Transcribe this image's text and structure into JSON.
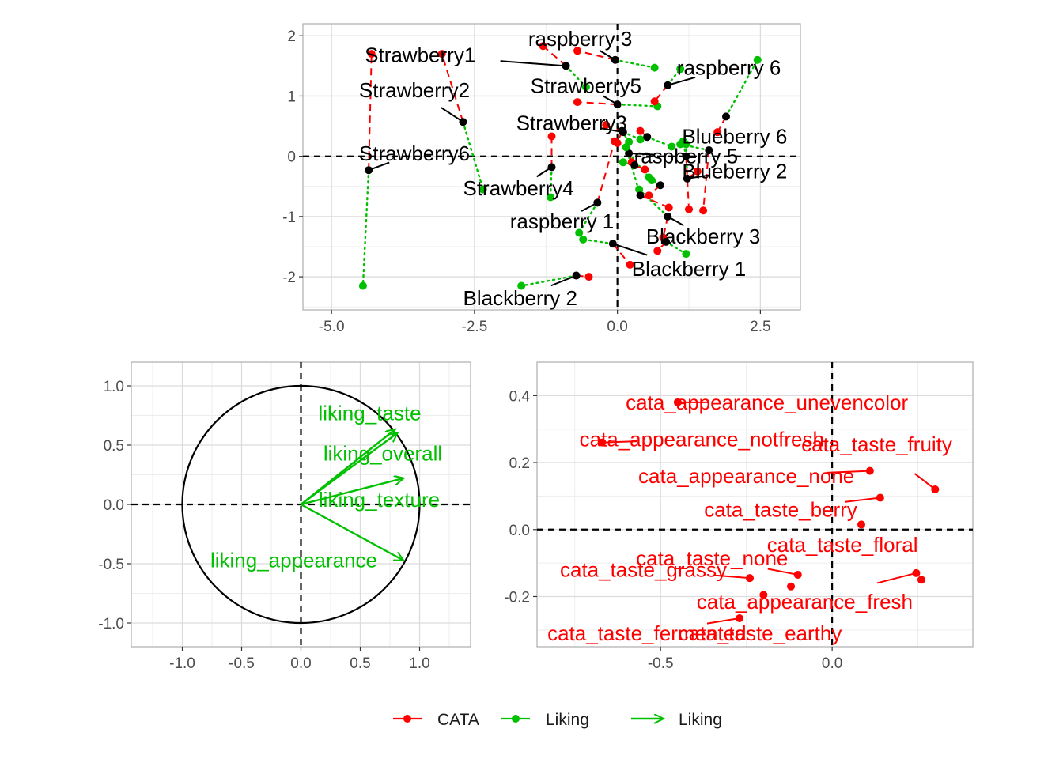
{
  "chart_data": [
    {
      "type": "scatter",
      "title": "",
      "xlabel": "",
      "ylabel": "",
      "xlim": [
        -5.5,
        3.2
      ],
      "ylim": [
        -2.55,
        2.2
      ],
      "xticks": [
        -5.0,
        -2.5,
        0.0,
        2.5
      ],
      "xtick_labels": [
        "-5.0",
        "-2.5",
        "0.0",
        "2.5"
      ],
      "yticks": [
        -2,
        -1,
        0,
        1,
        2
      ],
      "ytick_labels": [
        "-2",
        "-1",
        "0",
        "1",
        "2"
      ],
      "grid": true,
      "reference_lines": {
        "x": 0,
        "y": 0,
        "style": "dashed"
      },
      "colors": {
        "consensus": "#000000",
        "CATA": "#ff0000",
        "Liking": "#00c000"
      },
      "products": [
        {
          "name": "Strawberry1",
          "x": -0.9,
          "y": 1.5,
          "cata": [
            -1.3,
            1.83
          ],
          "liking": [
            -0.55,
            1.15
          ],
          "label_at": [
            -3.45,
            1.68
          ]
        },
        {
          "name": "Strawberry2",
          "x": -2.7,
          "y": 0.57,
          "cata": [
            -3.07,
            1.7
          ],
          "liking": [
            -2.35,
            -0.55
          ],
          "label_at": [
            -3.55,
            1.1
          ]
        },
        {
          "name": "Strawberry3",
          "x": 0.1,
          "y": 0.4,
          "cata": [
            -0.2,
            0.52
          ],
          "liking": [
            0.4,
            0.28
          ],
          "label_at": [
            -0.8,
            0.55
          ]
        },
        {
          "name": "Strawberry4",
          "x": -1.15,
          "y": -0.18,
          "cata": [
            -1.15,
            0.33
          ],
          "liking": [
            -1.17,
            -0.68
          ],
          "label_at": [
            -1.73,
            -0.53
          ]
        },
        {
          "name": "Strawberry5",
          "x": 0.0,
          "y": 0.86,
          "cata": [
            -0.7,
            0.9
          ],
          "liking": [
            0.7,
            0.83
          ],
          "label_at": [
            -0.55,
            1.17
          ]
        },
        {
          "name": "Strawberry6",
          "x": -4.35,
          "y": -0.23,
          "cata": [
            -4.3,
            1.7
          ],
          "liking": [
            -4.45,
            -2.15
          ],
          "label_at": [
            -3.55,
            0.05
          ]
        },
        {
          "name": "raspberry 1",
          "x": -0.35,
          "y": -0.77,
          "cata": [
            -0.05,
            0.25
          ],
          "liking": [
            -0.67,
            -1.27
          ],
          "label_at": [
            -0.97,
            -1.08
          ]
        },
        {
          "name": "raspberry 3",
          "x": -0.04,
          "y": 1.6,
          "cata": [
            -0.7,
            1.75
          ],
          "liking": [
            0.65,
            1.47
          ],
          "label_at": [
            -0.65,
            1.95
          ]
        },
        {
          "name": "raspberry 5",
          "x": 0.2,
          "y": 0.05,
          "cata": [
            0.25,
            -0.1
          ],
          "liking": [
            0.55,
            -0.35
          ],
          "label_at": [
            1.2,
            0.0
          ]
        },
        {
          "name": "raspberry 6",
          "x": 0.88,
          "y": 1.18,
          "cata": [
            0.65,
            0.91
          ],
          "liking": [
            1.1,
            1.45
          ],
          "label_at": [
            1.95,
            1.47
          ]
        },
        {
          "name": "Blueberry 2",
          "x": 1.22,
          "y": -0.37,
          "cata": [
            1.4,
            -0.25
          ],
          "liking": [
            1.2,
            0.2
          ],
          "label_at": [
            2.05,
            -0.25
          ]
        },
        {
          "name": "Blueberry 6",
          "x": 1.9,
          "y": 0.66,
          "cata": [
            1.75,
            0.4
          ],
          "liking": [
            2.45,
            1.6
          ],
          "label_at": [
            2.05,
            0.33
          ]
        },
        {
          "name": "Blackberry 1",
          "x": -0.08,
          "y": -1.45,
          "cata": [
            0.22,
            -1.8
          ],
          "liking": [
            -0.6,
            -1.38
          ],
          "label_at": [
            1.25,
            -1.87
          ]
        },
        {
          "name": "Blackberry 2",
          "x": -0.72,
          "y": -1.98,
          "cata": [
            -0.5,
            -2.0
          ],
          "liking": [
            -1.68,
            -2.15
          ],
          "label_at": [
            -1.7,
            -2.35
          ]
        },
        {
          "name": "Blackberry 3",
          "x": 0.88,
          "y": -1.0,
          "cata": [
            0.8,
            -1.35
          ],
          "liking": [
            0.38,
            -0.55
          ],
          "label_at": [
            1.5,
            -1.33
          ]
        },
        {
          "name": "",
          "x": 0.08,
          "y": 0.42,
          "cata": [
            0.0,
            0.22
          ],
          "liking": [
            0.2,
            0.24
          ],
          "label_at": null
        },
        {
          "name": "",
          "x": 0.52,
          "y": 0.32,
          "cata": [
            0.4,
            0.42
          ],
          "liking": [
            0.95,
            0.16
          ],
          "label_at": null
        },
        {
          "name": "",
          "x": 0.75,
          "y": -0.48,
          "cata": [
            0.55,
            -0.65
          ],
          "liking": [
            0.6,
            -0.4
          ],
          "label_at": null
        },
        {
          "name": "",
          "x": 0.4,
          "y": -0.65,
          "cata": [
            0.9,
            -0.85
          ],
          "liking": [
            0.15,
            0.15
          ],
          "label_at": null
        },
        {
          "name": "",
          "x": 1.2,
          "y": 0.0,
          "cata": [
            1.25,
            -0.88
          ],
          "liking": [
            1.15,
            0.25
          ],
          "label_at": null
        },
        {
          "name": "",
          "x": 1.6,
          "y": 0.1,
          "cata": [
            1.5,
            -0.9
          ],
          "liking": [
            1.1,
            0.2
          ],
          "label_at": null
        },
        {
          "name": "",
          "x": 0.3,
          "y": -0.15,
          "cata": [
            0.48,
            -0.22
          ],
          "liking": [
            0.1,
            -0.1
          ],
          "label_at": null
        },
        {
          "name": "",
          "x": 0.85,
          "y": -1.42,
          "cata": [
            0.7,
            -1.57
          ],
          "liking": [
            1.2,
            -1.62
          ],
          "label_at": null
        }
      ]
    },
    {
      "type": "scatter",
      "title": "",
      "xlabel": "",
      "ylabel": "",
      "xlim": [
        -1.43,
        1.43
      ],
      "ylim": [
        -1.2,
        1.2
      ],
      "xticks": [
        -1.0,
        -0.5,
        0.0,
        0.5,
        1.0
      ],
      "xtick_labels": [
        "-1.0",
        "-0.5",
        "0.0",
        "0.5",
        "1.0"
      ],
      "yticks": [
        -1.0,
        -0.5,
        0.0,
        0.5,
        1.0
      ],
      "ytick_labels": [
        "-1.0",
        "-0.5",
        "0.0",
        "0.5",
        "1.0"
      ],
      "grid": true,
      "circle_radius": 1,
      "reference_lines": {
        "x": 0,
        "y": 0,
        "style": "dashed"
      },
      "arrow_color": "#00c000",
      "arrows": [
        {
          "name": "liking_taste",
          "x": 0.79,
          "y": 0.63,
          "label_at": [
            0.58,
            0.77
          ]
        },
        {
          "name": "liking_overall",
          "x": 0.81,
          "y": 0.6,
          "label_at": [
            0.69,
            0.43
          ]
        },
        {
          "name": "liking_texture",
          "x": 0.86,
          "y": 0.22,
          "label_at": [
            0.66,
            0.04
          ]
        },
        {
          "name": "liking_appearance",
          "x": 0.86,
          "y": -0.47,
          "label_at": [
            -0.06,
            -0.47
          ]
        }
      ]
    },
    {
      "type": "scatter",
      "title": "",
      "xlabel": "",
      "ylabel": "",
      "xlim": [
        -0.86,
        0.41
      ],
      "ylim": [
        -0.35,
        0.5
      ],
      "xticks": [
        -0.5,
        0.0
      ],
      "xtick_labels": [
        "-0.5",
        "0.0"
      ],
      "yticks": [
        -0.2,
        0.0,
        0.2,
        0.4
      ],
      "ytick_labels": [
        "-0.2",
        "0.0",
        "0.2",
        "0.4"
      ],
      "grid": true,
      "reference_lines": {
        "x": 0,
        "y": 0,
        "style": "dashed"
      },
      "point_color": "#ff0000",
      "points": [
        {
          "name": "cata_appearance_unevencolor",
          "x": -0.45,
          "y": 0.38,
          "label_at": [
            -0.19,
            0.38
          ]
        },
        {
          "name": "cata_appearance_notfresh",
          "x": -0.67,
          "y": 0.26,
          "label_at": [
            -0.38,
            0.27
          ]
        },
        {
          "name": "cata_taste_fruity",
          "x": 0.3,
          "y": 0.12,
          "label_at": [
            0.13,
            0.255
          ]
        },
        {
          "name": "cata_appearance_none",
          "x": 0.11,
          "y": 0.175,
          "label_at": [
            -0.25,
            0.16
          ]
        },
        {
          "name": "cata_taste_berry",
          "x": 0.14,
          "y": 0.095,
          "label_at": [
            -0.15,
            0.06
          ]
        },
        {
          "name": "cata_taste_floral",
          "x": 0.085,
          "y": 0.015,
          "label_at": [
            0.03,
            -0.045
          ]
        },
        {
          "name": "cata_taste_none",
          "x": -0.1,
          "y": -0.135,
          "label_at": [
            -0.35,
            -0.085
          ]
        },
        {
          "name": "cata_taste_grassy",
          "x": -0.24,
          "y": -0.145,
          "label_at": [
            -0.55,
            -0.12
          ]
        },
        {
          "name": "cata_appearance_fresh",
          "x": 0.245,
          "y": -0.13,
          "label_at": [
            -0.08,
            -0.215
          ]
        },
        {
          "name": "cata_taste_fermented",
          "x": -0.27,
          "y": -0.265,
          "label_at": [
            -0.54,
            -0.31
          ]
        },
        {
          "name": "cata_taste_earthy",
          "x": -0.2,
          "y": -0.195,
          "label_at": [
            -0.21,
            -0.31
          ]
        },
        {
          "name": "",
          "x": 0.26,
          "y": -0.15,
          "label_at": null
        },
        {
          "name": "",
          "x": -0.12,
          "y": -0.17,
          "label_at": null
        }
      ]
    }
  ],
  "legend": {
    "items": [
      {
        "label": "CATA",
        "color": "#ff0000",
        "kind": "point-line"
      },
      {
        "label": "Liking",
        "color": "#00c000",
        "kind": "point-line"
      },
      {
        "label": "Liking",
        "color": "#00c000",
        "kind": "arrow"
      }
    ]
  }
}
